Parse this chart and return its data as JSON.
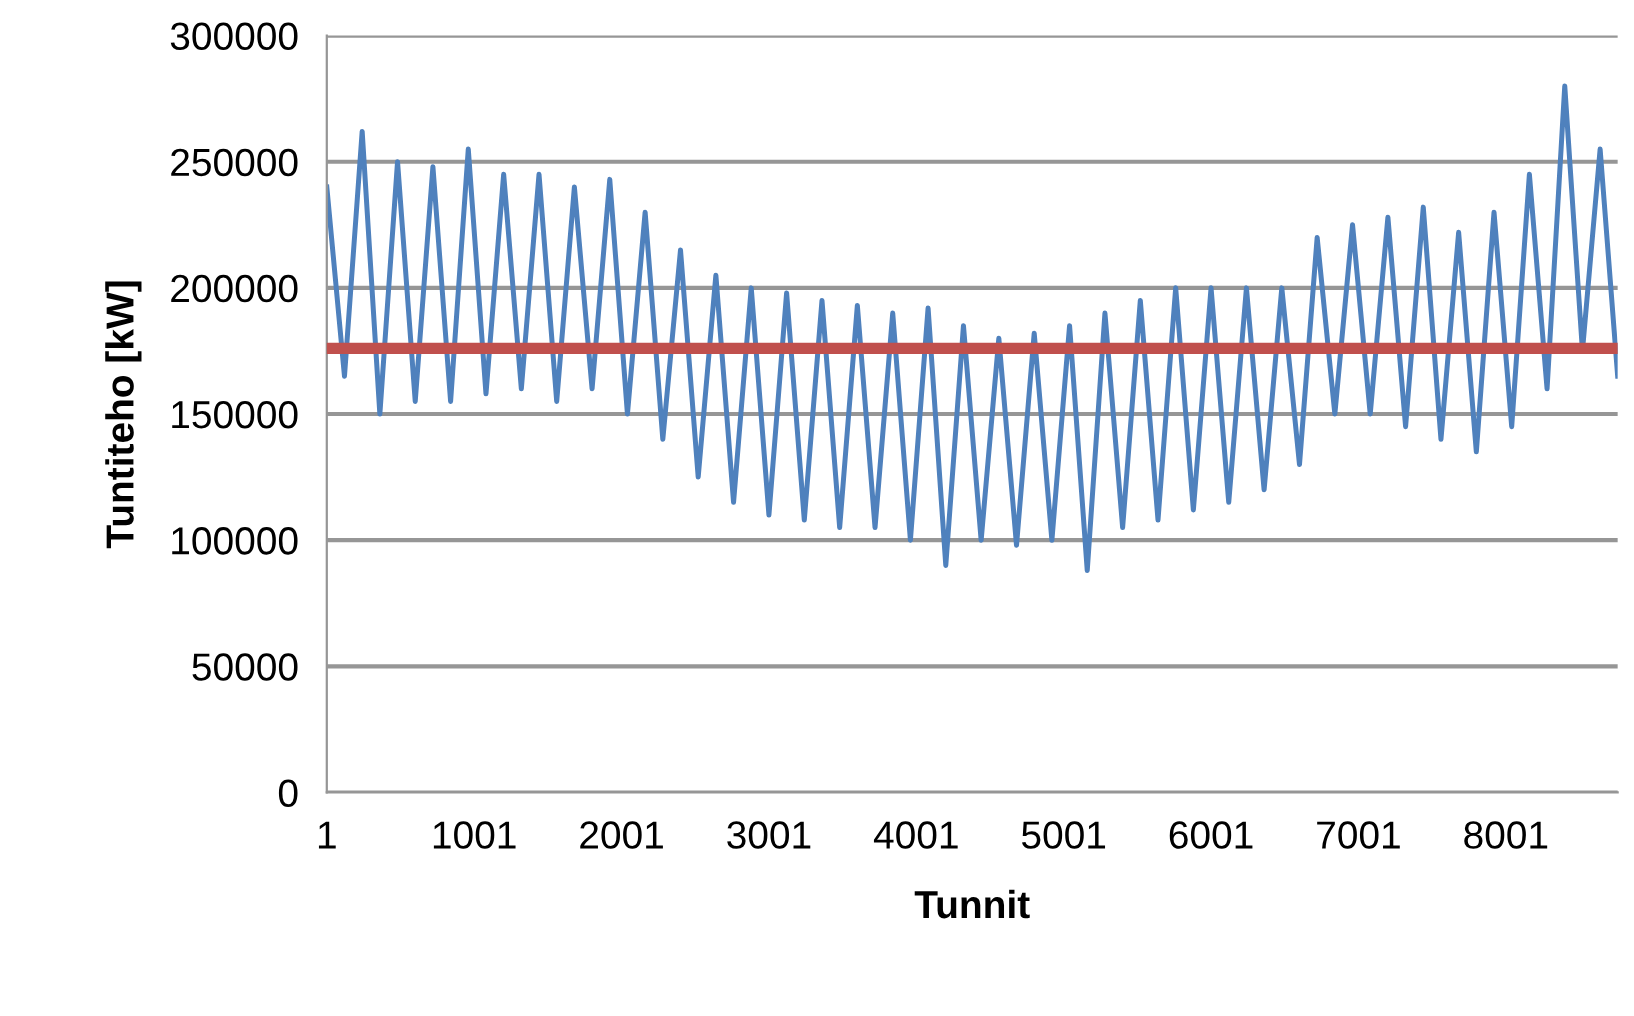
{
  "chart_data": {
    "type": "line",
    "xlabel": "Tunnit",
    "ylabel": "Tuntiteho [kW]",
    "x": [
      1,
      121,
      241,
      361,
      481,
      601,
      721,
      841,
      961,
      1081,
      1201,
      1321,
      1441,
      1561,
      1681,
      1801,
      1921,
      2041,
      2161,
      2281,
      2401,
      2521,
      2641,
      2761,
      2881,
      3001,
      3121,
      3241,
      3361,
      3481,
      3601,
      3721,
      3841,
      3961,
      4081,
      4201,
      4321,
      4441,
      4561,
      4681,
      4801,
      4921,
      5041,
      5161,
      5281,
      5401,
      5521,
      5641,
      5761,
      5881,
      6001,
      6121,
      6241,
      6361,
      6481,
      6601,
      6721,
      6841,
      6961,
      7081,
      7201,
      7321,
      7441,
      7561,
      7681,
      7801,
      7921,
      8041,
      8161,
      8281,
      8401,
      8521,
      8641,
      8760
    ],
    "series": [
      {
        "color": "#4f81bd",
        "values": [
          240000,
          165000,
          262000,
          150000,
          250000,
          155000,
          248000,
          155000,
          255000,
          158000,
          245000,
          160000,
          245000,
          155000,
          240000,
          160000,
          243000,
          150000,
          230000,
          140000,
          215000,
          125000,
          205000,
          115000,
          200000,
          110000,
          198000,
          108000,
          195000,
          105000,
          193000,
          105000,
          190000,
          100000,
          192000,
          90000,
          185000,
          100000,
          180000,
          98000,
          182000,
          100000,
          185000,
          88000,
          190000,
          105000,
          195000,
          108000,
          200000,
          112000,
          200000,
          115000,
          200000,
          120000,
          200000,
          130000,
          220000,
          150000,
          225000,
          150000,
          228000,
          145000,
          232000,
          140000,
          222000,
          135000,
          230000,
          145000,
          245000,
          160000,
          280000,
          175000,
          255000,
          165000
        ]
      }
    ],
    "ref_lines": [
      {
        "axis": "y",
        "value": 176000,
        "color": "#c0504d",
        "line_style": "solid"
      }
    ],
    "xlim": [
      1,
      8760
    ],
    "xticks": [
      1,
      1001,
      2001,
      3001,
      4001,
      5001,
      6001,
      7001,
      8001
    ],
    "ylim": [
      0,
      300000
    ],
    "yticks": [
      0,
      50000,
      100000,
      150000,
      200000,
      250000,
      300000
    ],
    "grid": "y",
    "legend": false,
    "marker": "none",
    "line_style": "solid"
  }
}
